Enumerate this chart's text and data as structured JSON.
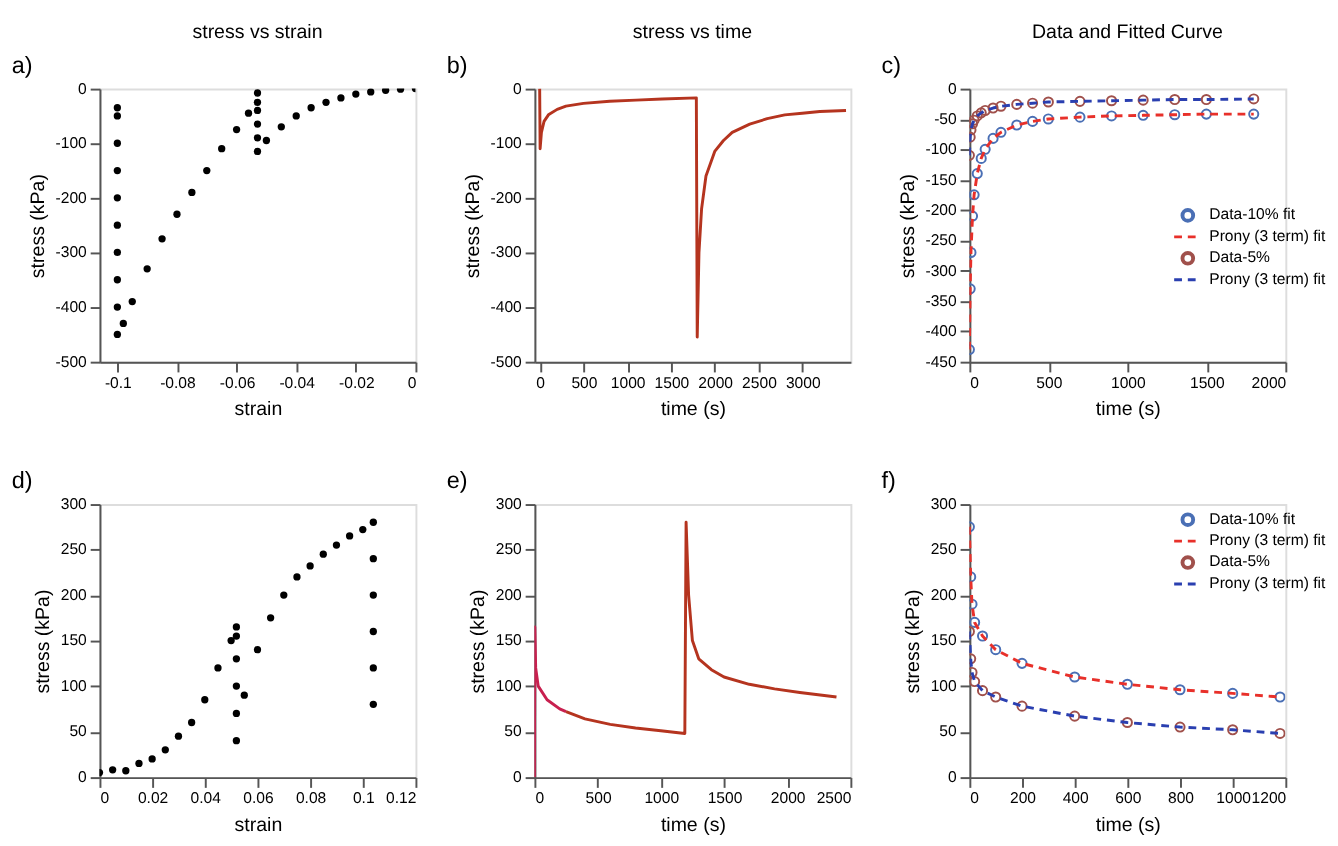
{
  "chart_data": [
    {
      "type": "scatter",
      "title": "stress vs strain",
      "xlabel": "strain",
      "ylabel": "stress (kPa)",
      "annotations": [
        "a)"
      ],
      "xlim": [
        -0.106,
        0
      ],
      "ylim": [
        -500,
        0
      ],
      "xticks": [
        -0.1,
        -0.08,
        -0.06,
        -0.04,
        -0.02,
        0
      ],
      "yticks": [
        -500,
        -400,
        -300,
        -200,
        -100,
        0
      ],
      "legend": false,
      "series": [
        {
          "color": "#000000",
          "marker": "circle",
          "x": [
            -0.1,
            -0.1,
            -0.1,
            -0.1,
            -0.1,
            -0.1,
            -0.1,
            -0.1,
            -0.1,
            -0.1,
            -0.098,
            -0.095,
            -0.09,
            -0.085,
            -0.08,
            -0.075,
            -0.07,
            -0.065,
            -0.06,
            -0.056,
            -0.053,
            -0.053,
            -0.053,
            -0.053,
            -0.053,
            -0.053,
            -0.05,
            -0.045,
            -0.04,
            -0.035,
            -0.03,
            -0.025,
            -0.02,
            -0.015,
            -0.01,
            -0.005,
            0
          ],
          "values": [
            -450,
            -400,
            -350,
            -300,
            -250,
            -200,
            -150,
            -100,
            -50,
            -35,
            -430,
            -390,
            -330,
            -275,
            -230,
            -190,
            -150,
            -110,
            -75,
            -45,
            -25,
            -115,
            -90,
            -65,
            -40,
            -8,
            -95,
            -70,
            -50,
            -35,
            -25,
            -17,
            -10,
            -6,
            -3,
            -1,
            0
          ]
        }
      ]
    },
    {
      "type": "line",
      "title": "stress vs time",
      "xlabel": "time (s)",
      "ylabel": "stress (kPa)",
      "annotations": [
        "b)"
      ],
      "xlim": [
        -60,
        3550
      ],
      "ylim": [
        -500,
        0
      ],
      "xticks": [
        0,
        500,
        1000,
        1500,
        2000,
        2500,
        3000
      ],
      "yticks": [
        -500,
        -400,
        -300,
        -200,
        -100,
        0
      ],
      "legend": false,
      "series": [
        {
          "color": "#b5341f",
          "line_style": "solid",
          "x": [
            0,
            5,
            20,
            50,
            100,
            200,
            300,
            500,
            800,
            1100,
            1400,
            1790,
            1800,
            1820,
            1850,
            1900,
            2000,
            2100,
            2200,
            2400,
            2600,
            2800,
            3000,
            3200,
            3500
          ],
          "values": [
            0,
            -110,
            -80,
            -60,
            -48,
            -38,
            -32,
            -27,
            -23,
            -21,
            -19,
            -17,
            -455,
            -300,
            -220,
            -160,
            -115,
            -95,
            -80,
            -65,
            -55,
            -48,
            -45,
            -42,
            -40
          ]
        }
      ]
    },
    {
      "type": "line",
      "title": "Data and Fitted Curve",
      "xlabel": "time (s)",
      "ylabel": "stress (kPa)",
      "annotations": [
        "c)"
      ],
      "xlim": [
        0,
        2000
      ],
      "ylim": [
        -450,
        0
      ],
      "xticks": [
        0,
        500,
        1000,
        1500,
        2000
      ],
      "yticks": [
        -450,
        -400,
        -350,
        -300,
        -250,
        -200,
        -150,
        -100,
        -50,
        0
      ],
      "legend": "right",
      "x": [
        0,
        5,
        10,
        20,
        30,
        50,
        75,
        100,
        150,
        200,
        300,
        400,
        500,
        700,
        900,
        1100,
        1300,
        1500,
        1800
      ],
      "series": [
        {
          "name": "Data-10% fit",
          "type": "scatter",
          "marker": "circle",
          "color": "#4a6fb5",
          "values": [
            -430,
            -330,
            -270,
            -210,
            -175,
            -140,
            -115,
            -100,
            -82,
            -72,
            -60,
            -54,
            -50,
            -47,
            -45,
            -44,
            -43,
            -42,
            -42
          ]
        },
        {
          "name": "Prony (3 term) fit",
          "type": "line",
          "line_style": "dashed",
          "color": "#e8302a",
          "values": [
            -430,
            -330,
            -270,
            -210,
            -175,
            -140,
            -115,
            -100,
            -82,
            -72,
            -60,
            -54,
            -50,
            -47,
            -45,
            -44,
            -43,
            -42,
            -42
          ]
        },
        {
          "name": "Data-5%",
          "type": "scatter",
          "marker": "circle",
          "color": "#a0504b",
          "values": [
            -110,
            -80,
            -68,
            -58,
            -52,
            -45,
            -40,
            -36,
            -32,
            -29,
            -26,
            -24,
            -22,
            -21,
            -20,
            -19,
            -18,
            -18,
            -17
          ]
        },
        {
          "name": "Prony (3 term) fit",
          "type": "line",
          "line_style": "dashed",
          "color": "#2a3fb0",
          "values": [
            -110,
            -80,
            -68,
            -58,
            -52,
            -45,
            -40,
            -36,
            -32,
            -29,
            -26,
            -24,
            -22,
            -21,
            -20,
            -19,
            -18,
            -18,
            -17
          ]
        }
      ]
    },
    {
      "type": "scatter",
      "xlabel": "strain",
      "ylabel": "stress (kPa)",
      "annotations": [
        "d)"
      ],
      "xlim": [
        0,
        0.12
      ],
      "ylim": [
        0,
        300
      ],
      "xticks": [
        0,
        0.02,
        0.04,
        0.06,
        0.08,
        0.1,
        0.12
      ],
      "yticks": [
        0,
        50,
        100,
        150,
        200,
        250,
        300
      ],
      "legend": false,
      "series": [
        {
          "color": "#000000",
          "marker": "circle",
          "x": [
            0,
            0.005,
            0.01,
            0.015,
            0.02,
            0.025,
            0.03,
            0.035,
            0.04,
            0.045,
            0.05,
            0.052,
            0.052,
            0.052,
            0.052,
            0.052,
            0.052,
            0.055,
            0.06,
            0.065,
            0.07,
            0.075,
            0.08,
            0.085,
            0.09,
            0.095,
            0.1,
            0.104,
            0.104,
            0.104,
            0.104,
            0.104,
            0.104
          ],
          "values": [
            5,
            8,
            7,
            15,
            20,
            30,
            45,
            60,
            85,
            120,
            150,
            165,
            40,
            70,
            100,
            130,
            155,
            90,
            140,
            175,
            200,
            220,
            232,
            245,
            255,
            265,
            272,
            280,
            80,
            120,
            160,
            200,
            240
          ]
        }
      ]
    },
    {
      "type": "line",
      "xlabel": "time (s)",
      "ylabel": "stress (kPa)",
      "annotations": [
        "e)"
      ],
      "xlim": [
        0,
        2500
      ],
      "ylim": [
        0,
        300
      ],
      "xticks": [
        0,
        500,
        1000,
        1500,
        2000,
        2500
      ],
      "yticks": [
        0,
        50,
        100,
        150,
        200,
        250,
        300
      ],
      "legend": false,
      "series": [
        {
          "color": "#c8204f",
          "line_style": "solid",
          "x": [
            0,
            3,
            10,
            30,
            100,
            200,
            250
          ],
          "values": [
            0,
            165,
            120,
            100,
            85,
            75,
            72
          ]
        },
        {
          "color": "#b5341f",
          "line_style": "solid",
          "x": [
            250,
            400,
            600,
            800,
            1000,
            1190,
            1200,
            1220,
            1250,
            1300,
            1400,
            1500,
            1700,
            1900,
            2100,
            2390
          ],
          "values": [
            72,
            64,
            58,
            54,
            51,
            48,
            280,
            200,
            150,
            130,
            118,
            110,
            102,
            97,
            93,
            88
          ]
        }
      ]
    },
    {
      "type": "line",
      "xlabel": "time (s)",
      "ylabel": "stress (kPa)",
      "annotations": [
        "f)"
      ],
      "xlim": [
        0,
        1200
      ],
      "ylim": [
        0,
        300
      ],
      "xticks": [
        0,
        200,
        400,
        600,
        800,
        1000,
        1200
      ],
      "yticks": [
        0,
        50,
        100,
        150,
        200,
        250,
        300
      ],
      "legend": "top right",
      "x": [
        0,
        5,
        10,
        20,
        50,
        100,
        200,
        400,
        600,
        800,
        1000,
        1180
      ],
      "series": [
        {
          "name": "Data-10% fit",
          "type": "scatter",
          "marker": "circle",
          "color": "#4a6fb5",
          "values": [
            275,
            220,
            190,
            170,
            155,
            140,
            125,
            110,
            102,
            96,
            92,
            88
          ]
        },
        {
          "name": "Prony (3 term) fit",
          "type": "line",
          "line_style": "dashed",
          "color": "#e8302a",
          "values": [
            275,
            220,
            190,
            170,
            155,
            140,
            125,
            110,
            102,
            96,
            92,
            88
          ]
        },
        {
          "name": "Data-5%",
          "type": "scatter",
          "marker": "circle",
          "color": "#a0504b",
          "values": [
            160,
            130,
            115,
            105,
            95,
            88,
            78,
            67,
            60,
            55,
            52,
            48
          ]
        },
        {
          "name": "Prony (3 term) fit",
          "type": "line",
          "line_style": "dashed",
          "color": "#2a3fb0",
          "values": [
            160,
            130,
            115,
            105,
            95,
            88,
            78,
            67,
            60,
            55,
            52,
            48
          ]
        }
      ]
    }
  ]
}
